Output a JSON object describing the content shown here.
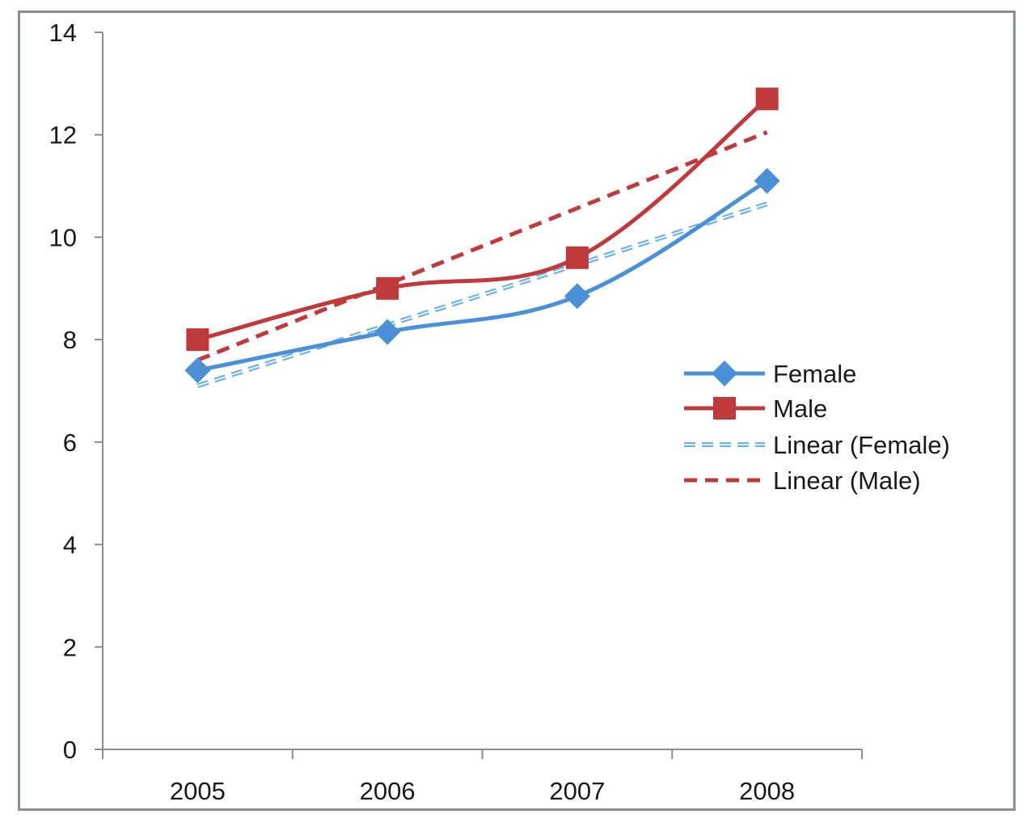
{
  "chart_data": {
    "type": "line",
    "title": "",
    "xlabel": "",
    "ylabel": "",
    "categories": [
      "2005",
      "2006",
      "2007",
      "2008"
    ],
    "ylim": [
      0,
      14
    ],
    "y_ticks": [
      0,
      2,
      4,
      6,
      8,
      10,
      12,
      14
    ],
    "grid": false,
    "legend_position": "right",
    "series": [
      {
        "name": "Female",
        "values": [
          7.4,
          8.15,
          8.85,
          11.1
        ],
        "color": "#4a90d9",
        "marker": "diamond",
        "style": "solid-smooth"
      },
      {
        "name": "Male",
        "values": [
          8.0,
          9.0,
          9.6,
          12.7
        ],
        "color": "#c0393b",
        "marker": "square",
        "style": "solid-smooth"
      },
      {
        "name": "Linear (Female)",
        "values": [
          7.1,
          8.3,
          9.5,
          10.65
        ],
        "color": "#6fb2e6",
        "marker": "none",
        "style": "dashed-double"
      },
      {
        "name": "Linear (Male)",
        "values": [
          7.6,
          9.1,
          10.6,
          12.05
        ],
        "color": "#c0393b",
        "marker": "none",
        "style": "dashed"
      }
    ]
  }
}
